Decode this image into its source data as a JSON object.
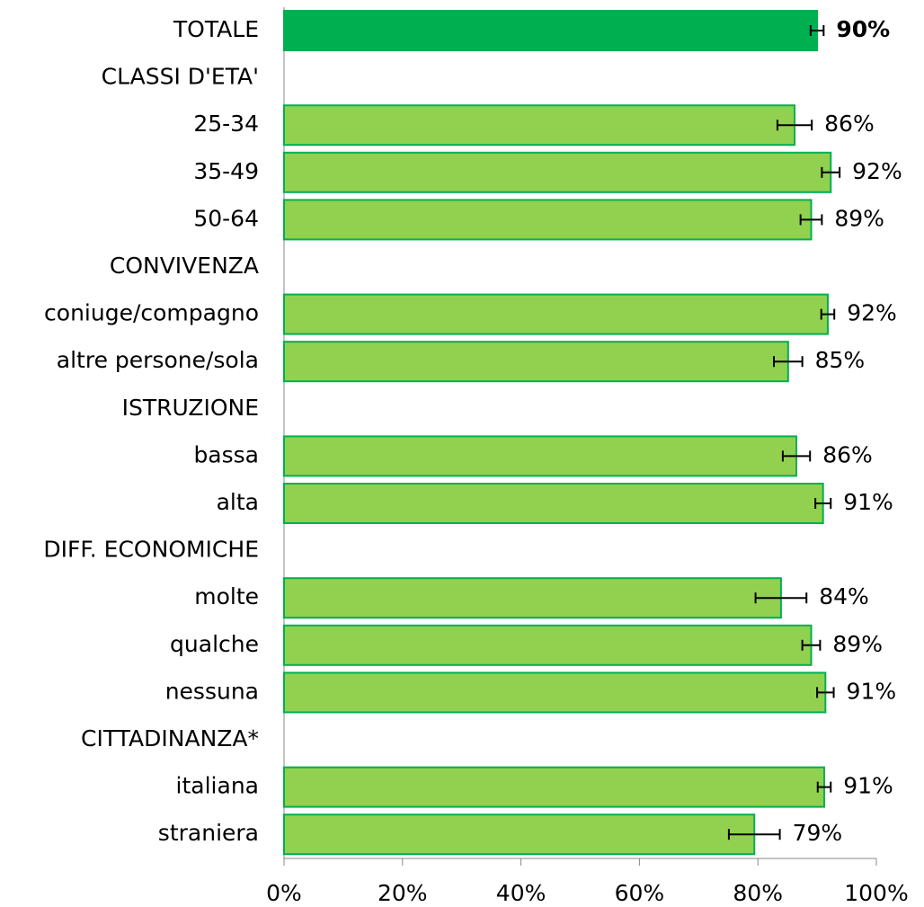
{
  "chart_data": {
    "type": "bar",
    "orientation": "horizontal",
    "categories": [
      "TOTALE",
      "CLASSI D'ETA'",
      "25-34",
      "35-49",
      "50-64",
      "CONVIVENZA",
      "coniuge/compagno",
      "altre persone/sola",
      "ISTRUZIONE",
      "bassa",
      "alta",
      "DIFF. ECONOMICHE",
      "molte",
      "qualche",
      "nessuna",
      "CITTADINANZA*",
      "italiana",
      "straniera"
    ],
    "values": [
      90,
      null,
      86.2,
      92.3,
      89,
      null,
      91.8,
      85.1,
      null,
      86.5,
      91,
      null,
      83.9,
      89,
      91.4,
      null,
      91.2,
      79.4
    ],
    "errors": [
      1.1,
      null,
      2.9,
      1.5,
      1.8,
      null,
      1.1,
      2.4,
      null,
      2.3,
      1.3,
      null,
      4.3,
      1.5,
      1.4,
      null,
      1.1,
      4.3
    ],
    "value_labels": [
      "90%",
      null,
      "86%",
      "92%",
      "89%",
      null,
      "92%",
      "85%",
      null,
      "86%",
      "91%",
      null,
      "84%",
      "89%",
      "91%",
      null,
      "91%",
      "79%"
    ],
    "colors": [
      "#00b050",
      null,
      "#92d050",
      "#92d050",
      "#92d050",
      null,
      "#92d050",
      "#92d050",
      null,
      "#92d050",
      "#92d050",
      null,
      "#92d050",
      "#92d050",
      "#92d050",
      null,
      "#92d050",
      "#92d050"
    ],
    "edge_color": "#00b050",
    "xlim": [
      0,
      100
    ],
    "xticks": [
      {
        "value": 0,
        "label": "0%"
      },
      {
        "value": 20,
        "label": "20%"
      },
      {
        "value": 40,
        "label": "40%"
      },
      {
        "value": 60,
        "label": "60%"
      },
      {
        "value": 80,
        "label": "80%"
      },
      {
        "value": 100,
        "label": "100%"
      }
    ]
  }
}
